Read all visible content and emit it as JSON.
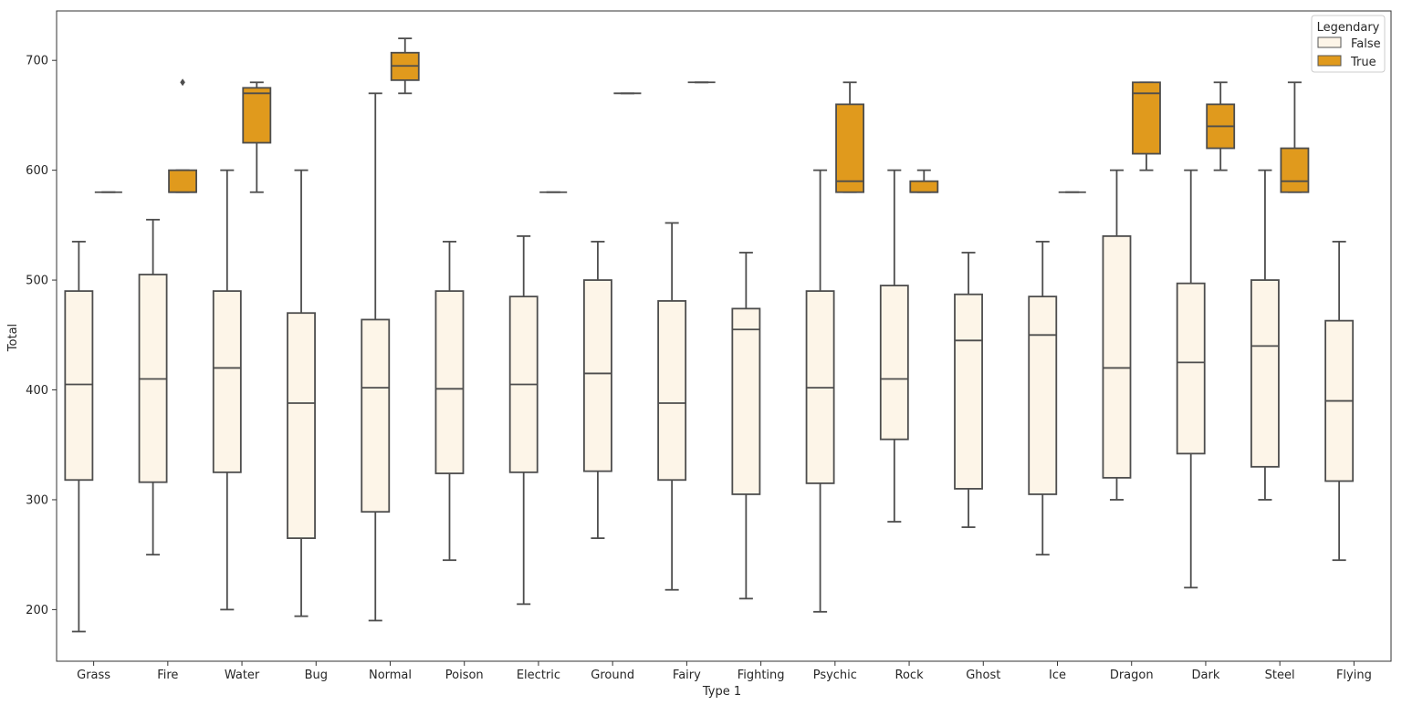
{
  "chart_data": {
    "type": "box",
    "title": "",
    "xlabel": "Type 1",
    "ylabel": "Total",
    "ylim": [
      153,
      745
    ],
    "yticks": [
      200,
      300,
      400,
      500,
      600,
      700
    ],
    "grid": false,
    "legend": {
      "title": "Legendary",
      "position": "top-right",
      "entries": [
        {
          "label": "False",
          "color": "#fdf5e8"
        },
        {
          "label": "True",
          "color": "#e09a1d"
        }
      ]
    },
    "categories": [
      "Grass",
      "Fire",
      "Water",
      "Bug",
      "Normal",
      "Poison",
      "Electric",
      "Ground",
      "Fairy",
      "Fighting",
      "Psychic",
      "Rock",
      "Ghost",
      "Ice",
      "Dragon",
      "Dark",
      "Steel",
      "Flying"
    ],
    "series": [
      {
        "name": "False",
        "color": "#fdf5e8",
        "boxes": [
          {
            "category": "Grass",
            "whisker_low": 180,
            "q1": 318,
            "median": 405,
            "q3": 490,
            "whisker_high": 535,
            "outliers": []
          },
          {
            "category": "Fire",
            "whisker_low": 250,
            "q1": 316,
            "median": 410,
            "q3": 505,
            "whisker_high": 555,
            "outliers": []
          },
          {
            "category": "Water",
            "whisker_low": 200,
            "q1": 325,
            "median": 420,
            "q3": 490,
            "whisker_high": 600,
            "outliers": []
          },
          {
            "category": "Bug",
            "whisker_low": 194,
            "q1": 265,
            "median": 388,
            "q3": 470,
            "whisker_high": 600,
            "outliers": []
          },
          {
            "category": "Normal",
            "whisker_low": 190,
            "q1": 289,
            "median": 402,
            "q3": 464,
            "whisker_high": 670,
            "outliers": []
          },
          {
            "category": "Poison",
            "whisker_low": 245,
            "q1": 324,
            "median": 401,
            "q3": 490,
            "whisker_high": 535,
            "outliers": []
          },
          {
            "category": "Electric",
            "whisker_low": 205,
            "q1": 325,
            "median": 405,
            "q3": 485,
            "whisker_high": 540,
            "outliers": []
          },
          {
            "category": "Ground",
            "whisker_low": 265,
            "q1": 326,
            "median": 415,
            "q3": 500,
            "whisker_high": 535,
            "outliers": []
          },
          {
            "category": "Fairy",
            "whisker_low": 218,
            "q1": 318,
            "median": 388,
            "q3": 481,
            "whisker_high": 552,
            "outliers": []
          },
          {
            "category": "Fighting",
            "whisker_low": 210,
            "q1": 305,
            "median": 455,
            "q3": 474,
            "whisker_high": 525,
            "outliers": []
          },
          {
            "category": "Psychic",
            "whisker_low": 198,
            "q1": 315,
            "median": 402,
            "q3": 490,
            "whisker_high": 600,
            "outliers": []
          },
          {
            "category": "Rock",
            "whisker_low": 280,
            "q1": 355,
            "median": 410,
            "q3": 495,
            "whisker_high": 600,
            "outliers": []
          },
          {
            "category": "Ghost",
            "whisker_low": 275,
            "q1": 310,
            "median": 445,
            "q3": 487,
            "whisker_high": 525,
            "outliers": []
          },
          {
            "category": "Ice",
            "whisker_low": 250,
            "q1": 305,
            "median": 450,
            "q3": 485,
            "whisker_high": 535,
            "outliers": []
          },
          {
            "category": "Dragon",
            "whisker_low": 300,
            "q1": 320,
            "median": 420,
            "q3": 540,
            "whisker_high": 600,
            "outliers": []
          },
          {
            "category": "Dark",
            "whisker_low": 220,
            "q1": 342,
            "median": 425,
            "q3": 497,
            "whisker_high": 600,
            "outliers": []
          },
          {
            "category": "Steel",
            "whisker_low": 300,
            "q1": 330,
            "median": 440,
            "q3": 500,
            "whisker_high": 600,
            "outliers": []
          },
          {
            "category": "Flying",
            "whisker_low": 245,
            "q1": 317,
            "median": 390,
            "q3": 463,
            "whisker_high": 535,
            "outliers": []
          }
        ]
      },
      {
        "name": "True",
        "color": "#e09a1d",
        "boxes": [
          {
            "category": "Grass",
            "whisker_low": 580,
            "q1": 580,
            "median": 580,
            "q3": 580,
            "whisker_high": 580,
            "outliers": []
          },
          {
            "category": "Fire",
            "whisker_low": 580,
            "q1": 580,
            "median": 580,
            "q3": 600,
            "whisker_high": 600,
            "outliers": [
              680
            ]
          },
          {
            "category": "Water",
            "whisker_low": 580,
            "q1": 625,
            "median": 670,
            "q3": 675,
            "whisker_high": 680,
            "outliers": []
          },
          {
            "category": "Normal",
            "whisker_low": 670,
            "q1": 682,
            "median": 695,
            "q3": 707,
            "whisker_high": 720,
            "outliers": []
          },
          {
            "category": "Electric",
            "whisker_low": 580,
            "q1": 580,
            "median": 580,
            "q3": 580,
            "whisker_high": 580,
            "outliers": []
          },
          {
            "category": "Ground",
            "whisker_low": 670,
            "q1": 670,
            "median": 670,
            "q3": 670,
            "whisker_high": 670,
            "outliers": []
          },
          {
            "category": "Fairy",
            "whisker_low": 680,
            "q1": 680,
            "median": 680,
            "q3": 680,
            "whisker_high": 680,
            "outliers": []
          },
          {
            "category": "Psychic",
            "whisker_low": 580,
            "q1": 580,
            "median": 590,
            "q3": 660,
            "whisker_high": 680,
            "outliers": []
          },
          {
            "category": "Rock",
            "whisker_low": 580,
            "q1": 580,
            "median": 580,
            "q3": 590,
            "whisker_high": 600,
            "outliers": []
          },
          {
            "category": "Ice",
            "whisker_low": 580,
            "q1": 580,
            "median": 580,
            "q3": 580,
            "whisker_high": 580,
            "outliers": []
          },
          {
            "category": "Dragon",
            "whisker_low": 600,
            "q1": 615,
            "median": 670,
            "q3": 680,
            "whisker_high": 680,
            "outliers": []
          },
          {
            "category": "Dark",
            "whisker_low": 600,
            "q1": 620,
            "median": 640,
            "q3": 660,
            "whisker_high": 680,
            "outliers": []
          },
          {
            "category": "Steel",
            "whisker_low": 580,
            "q1": 580,
            "median": 590,
            "q3": 620,
            "whisker_high": 680,
            "outliers": []
          }
        ]
      }
    ]
  }
}
